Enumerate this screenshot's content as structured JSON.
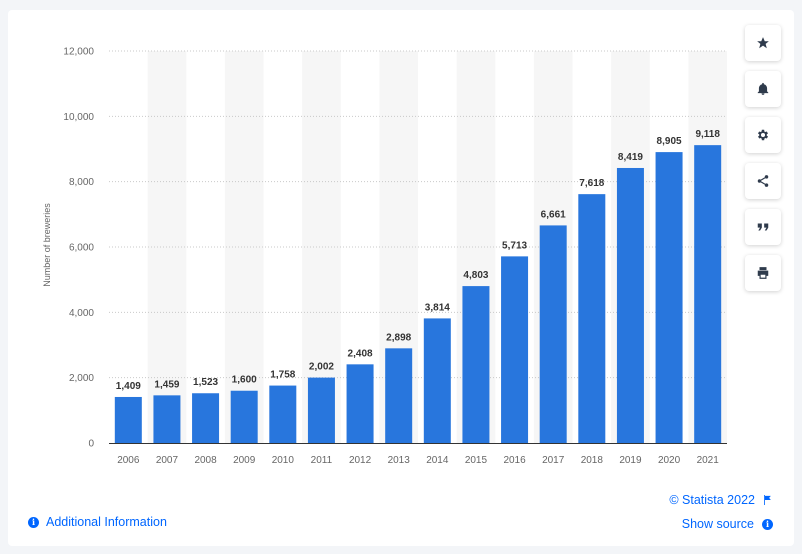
{
  "chart_data": {
    "type": "bar",
    "categories": [
      "2006",
      "2007",
      "2008",
      "2009",
      "2010",
      "2011",
      "2012",
      "2013",
      "2014",
      "2015",
      "2016",
      "2017",
      "2018",
      "2019",
      "2020",
      "2021"
    ],
    "values": [
      1409,
      1459,
      1523,
      1600,
      1758,
      2002,
      2408,
      2898,
      3814,
      4803,
      5713,
      6661,
      7618,
      8419,
      8905,
      9118
    ],
    "value_labels": [
      "1,409",
      "1,459",
      "1,523",
      "1,600",
      "1,758",
      "2,002",
      "2,408",
      "2,898",
      "3,814",
      "4,803",
      "5,713",
      "6,661",
      "7,618",
      "8,419",
      "8,905",
      "9,118"
    ],
    "ylabel": "Number of breweries",
    "xlabel": "",
    "ylim": [
      0,
      12000
    ],
    "yticks": [
      0,
      2000,
      4000,
      6000,
      8000,
      10000,
      12000
    ],
    "ytick_labels": [
      "0",
      "2,000",
      "4,000",
      "6,000",
      "8,000",
      "10,000",
      "12,000"
    ],
    "grid": true,
    "bar_color": "#2876dd",
    "band_color": "#f6f6f6"
  },
  "toolbar": {
    "icons": [
      "star-icon",
      "bell-icon",
      "gear-icon",
      "share-icon",
      "quote-icon",
      "print-icon"
    ]
  },
  "footer": {
    "additional_info": "Additional Information",
    "copyright": "© Statista 2022",
    "show_source": "Show source"
  },
  "colors": {
    "accent": "#0066ff",
    "background": "#f3f5f8"
  }
}
